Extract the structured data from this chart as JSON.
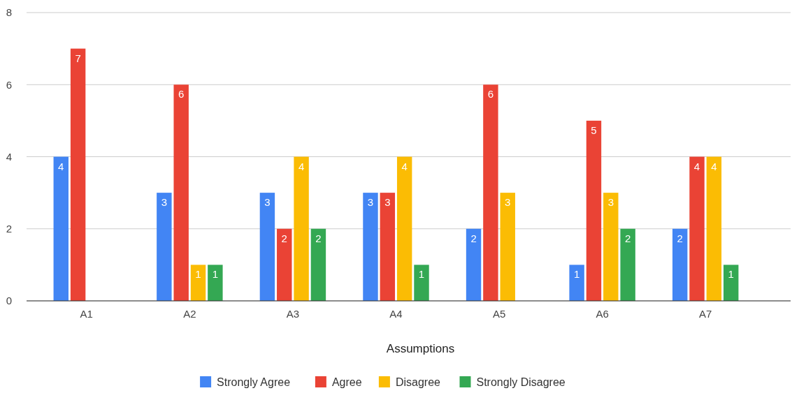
{
  "chart_data": {
    "type": "bar",
    "xlabel": "Assumptions",
    "categories": [
      "A1",
      "A2",
      "A3",
      "A4",
      "A5",
      "A6",
      "A7"
    ],
    "series": [
      {
        "name": "Strongly Agree",
        "color": "#4285f4",
        "values": [
          4,
          3,
          3,
          3,
          2,
          1,
          2
        ],
        "value_labels": [
          "4",
          "3",
          "3",
          "3",
          "2",
          "1",
          "2"
        ]
      },
      {
        "name": "Agree",
        "color": "#ea4335",
        "values": [
          7,
          6,
          2,
          3,
          6,
          5,
          4
        ],
        "value_labels": [
          "7",
          "6",
          "2",
          "3",
          "6",
          "5",
          "4"
        ]
      },
      {
        "name": "Disagree",
        "color": "#fbbc04",
        "values": [
          0,
          1,
          4,
          4,
          3,
          3,
          4
        ],
        "value_labels": [
          null,
          "1",
          "4",
          "4",
          "3",
          "3",
          "4"
        ]
      },
      {
        "name": "Strongly Disagree",
        "color": "#34a853",
        "values": [
          0,
          1,
          2,
          1,
          0,
          2,
          1
        ],
        "value_labels": [
          null,
          "1",
          "2",
          "1",
          null,
          "2",
          "1"
        ]
      }
    ],
    "ylim": [
      0,
      8
    ],
    "yticks": [
      0,
      2,
      4,
      6,
      8
    ],
    "grid": "y",
    "legend": "bottom"
  }
}
